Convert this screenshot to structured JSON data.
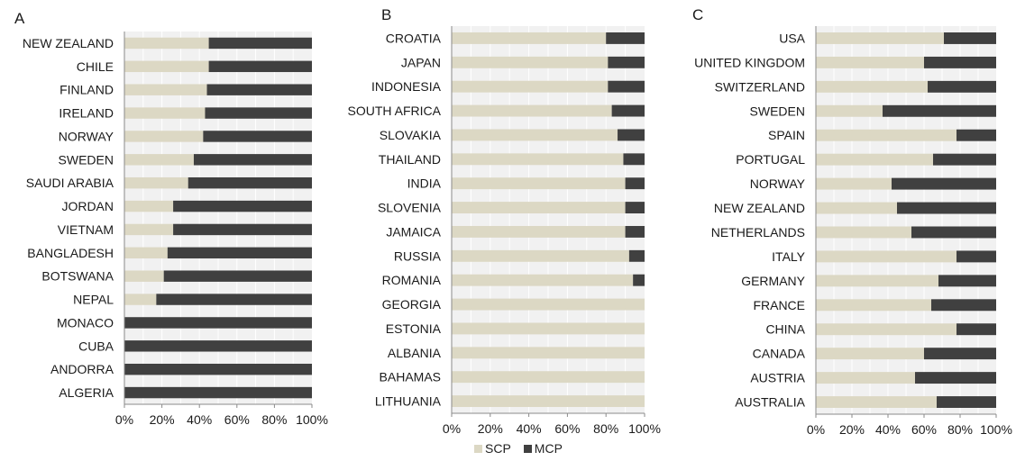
{
  "colors": {
    "scp": "#dcd8c4",
    "mcp": "#404040",
    "plot_bg": "#f1f1f1",
    "grid": "#ffffff",
    "axis": "#8a8a8a",
    "text": "#1a1a1a"
  },
  "legend": [
    {
      "label": "SCP",
      "color": "#dcd8c4"
    },
    {
      "label": "MCP",
      "color": "#404040"
    }
  ],
  "chart_data": [
    {
      "type": "bar",
      "orientation": "horizontal",
      "stacked": true,
      "percent": true,
      "panel_label": "A",
      "xlim": [
        0,
        100
      ],
      "xticks": [
        "0%",
        "20%",
        "40%",
        "60%",
        "80%",
        "100%"
      ],
      "grid": true,
      "categories": [
        "NEW ZEALAND",
        "CHILE",
        "FINLAND",
        "IRELAND",
        "NORWAY",
        "SWEDEN",
        "SAUDI ARABIA",
        "JORDAN",
        "VIETNAM",
        "BANGLADESH",
        "BOTSWANA",
        "NEPAL",
        "MONACO",
        "CUBA",
        "ANDORRA",
        "ALGERIA"
      ],
      "series": [
        {
          "name": "SCP",
          "values": [
            45,
            45,
            44,
            43,
            42,
            37,
            34,
            26,
            26,
            23,
            21,
            17,
            0,
            0,
            0,
            0
          ]
        },
        {
          "name": "MCP",
          "values": [
            55,
            55,
            56,
            57,
            58,
            63,
            66,
            74,
            74,
            77,
            79,
            83,
            100,
            100,
            100,
            100
          ]
        }
      ]
    },
    {
      "type": "bar",
      "orientation": "horizontal",
      "stacked": true,
      "percent": true,
      "panel_label": "B",
      "xlim": [
        0,
        100
      ],
      "xticks": [
        "0%",
        "20%",
        "40%",
        "60%",
        "80%",
        "100%"
      ],
      "grid": true,
      "categories": [
        "CROATIA",
        "JAPAN",
        "INDONESIA",
        "SOUTH AFRICA",
        "SLOVAKIA",
        "THAILAND",
        "INDIA",
        "SLOVENIA",
        "JAMAICA",
        "RUSSIA",
        "ROMANIA",
        "GEORGIA",
        "ESTONIA",
        "ALBANIA",
        "BAHAMAS",
        "LITHUANIA"
      ],
      "series": [
        {
          "name": "SCP",
          "values": [
            80,
            81,
            81,
            83,
            86,
            89,
            90,
            90,
            90,
            92,
            94,
            100,
            100,
            100,
            100,
            100
          ]
        },
        {
          "name": "MCP",
          "values": [
            20,
            19,
            19,
            17,
            14,
            11,
            10,
            10,
            10,
            8,
            6,
            0,
            0,
            0,
            0,
            0
          ]
        }
      ]
    },
    {
      "type": "bar",
      "orientation": "horizontal",
      "stacked": true,
      "percent": true,
      "panel_label": "C",
      "xlim": [
        0,
        100
      ],
      "xticks": [
        "0%",
        "20%",
        "40%",
        "60%",
        "80%",
        "100%"
      ],
      "grid": true,
      "categories": [
        "USA",
        "UNITED KINGDOM",
        "SWITZERLAND",
        "SWEDEN",
        "SPAIN",
        "PORTUGAL",
        "NORWAY",
        "NEW ZEALAND",
        "NETHERLANDS",
        "ITALY",
        "GERMANY",
        "FRANCE",
        "CHINA",
        "CANADA",
        "AUSTRIA",
        "AUSTRALIA"
      ],
      "series": [
        {
          "name": "SCP",
          "values": [
            71,
            60,
            62,
            37,
            78,
            65,
            42,
            45,
            53,
            78,
            68,
            64,
            78,
            60,
            55,
            67
          ]
        },
        {
          "name": "MCP",
          "values": [
            29,
            40,
            38,
            63,
            22,
            35,
            58,
            55,
            47,
            22,
            32,
            36,
            22,
            40,
            45,
            33
          ]
        }
      ]
    }
  ]
}
